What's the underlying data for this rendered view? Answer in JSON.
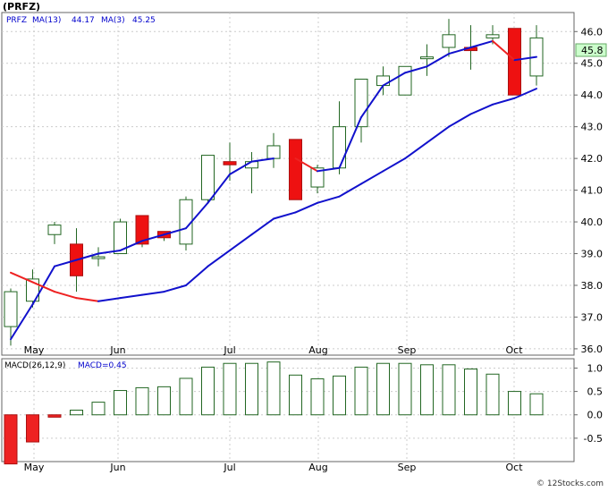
{
  "chart_data": [
    {
      "type": "candlestick",
      "title": "(PRFZ)",
      "legend": {
        "items": [
          {
            "text": "PRFZ",
            "color": "#0000cc"
          },
          {
            "text": "MA(13)",
            "color": "#0000cc"
          },
          {
            "text": "44.17",
            "color": "#0000cc"
          },
          {
            "text": "MA(3)",
            "color": "#0000cc"
          },
          {
            "text": "45.25",
            "color": "#0000cc"
          }
        ]
      },
      "last_price_label": "45.8",
      "ylim": [
        35.8,
        46.6
      ],
      "y_ticks": [
        "46.0",
        "45.0",
        "44.0",
        "43.0",
        "42.0",
        "41.0",
        "40.0",
        "39.0",
        "38.0",
        "37.0",
        "36.0"
      ],
      "x_ticks": [
        "May",
        "Jun",
        "Jul",
        "Aug",
        "Sep",
        "Oct"
      ],
      "candles": [
        {
          "o": 36.7,
          "h": 37.9,
          "l": 36.1,
          "c": 37.8
        },
        {
          "o": 37.5,
          "h": 38.5,
          "l": 37.3,
          "c": 38.2
        },
        {
          "o": 39.6,
          "h": 40.0,
          "l": 39.3,
          "c": 39.9
        },
        {
          "o": 39.3,
          "h": 39.8,
          "l": 37.8,
          "c": 38.3
        },
        {
          "o": 38.9,
          "h": 39.2,
          "l": 38.6,
          "c": 38.9
        },
        {
          "o": 39.0,
          "h": 40.1,
          "l": 39.0,
          "c": 40.0
        },
        {
          "o": 40.2,
          "h": 40.2,
          "l": 39.2,
          "c": 39.3
        },
        {
          "o": 39.7,
          "h": 39.7,
          "l": 39.4,
          "c": 39.5
        },
        {
          "o": 39.3,
          "h": 40.8,
          "l": 39.1,
          "c": 40.7
        },
        {
          "o": 40.7,
          "h": 42.1,
          "l": 40.6,
          "c": 42.1
        },
        {
          "o": 41.9,
          "h": 42.5,
          "l": 41.3,
          "c": 41.8
        },
        {
          "o": 41.7,
          "h": 42.2,
          "l": 40.9,
          "c": 41.9
        },
        {
          "o": 42.0,
          "h": 42.8,
          "l": 41.7,
          "c": 42.4
        },
        {
          "o": 42.6,
          "h": 42.6,
          "l": 40.7,
          "c": 40.7
        },
        {
          "o": 41.1,
          "h": 41.8,
          "l": 40.9,
          "c": 41.7
        },
        {
          "o": 41.7,
          "h": 43.8,
          "l": 41.5,
          "c": 43.0
        },
        {
          "o": 43.0,
          "h": 44.5,
          "l": 42.5,
          "c": 44.5
        },
        {
          "o": 44.3,
          "h": 44.9,
          "l": 44.0,
          "c": 44.6
        },
        {
          "o": 44.0,
          "h": 44.9,
          "l": 44.0,
          "c": 44.9
        },
        {
          "o": 45.2,
          "h": 45.6,
          "l": 44.6,
          "c": 45.2
        },
        {
          "o": 45.5,
          "h": 46.4,
          "l": 45.2,
          "c": 45.9
        },
        {
          "o": 45.5,
          "h": 46.2,
          "l": 44.8,
          "c": 45.4
        },
        {
          "o": 45.8,
          "h": 46.2,
          "l": 45.6,
          "c": 45.9
        },
        {
          "o": 46.1,
          "h": 46.1,
          "l": 44.0,
          "c": 44.0
        },
        {
          "o": 44.6,
          "h": 46.2,
          "l": 44.3,
          "c": 45.8
        }
      ],
      "series": [
        {
          "name": "MA(13)",
          "color": "#1111cc",
          "values": [
            36.3,
            37.4,
            38.6,
            38.8,
            39.0,
            39.1,
            39.4,
            39.6,
            39.8,
            40.6,
            41.5,
            41.9,
            42.0
          ]
        },
        {
          "name": "MA(3)",
          "color": "#1111cc",
          "down_color": "#ee2222",
          "values": [
            38.4,
            38.1,
            37.8,
            37.6,
            37.5,
            37.6,
            37.7,
            37.8,
            38.0,
            38.6,
            39.1,
            39.6,
            40.1,
            40.3,
            40.6,
            40.8,
            41.2,
            41.6,
            42.0,
            42.5,
            43.0,
            43.4,
            43.7,
            43.9,
            44.2
          ]
        },
        {
          "name": "MA(13) overlay",
          "color": "#1111cc",
          "down_color": "#ee2222",
          "values": [
            42.0,
            41.6,
            41.7,
            43.3,
            44.3,
            44.7,
            44.9,
            45.3,
            45.5,
            45.7,
            45.1,
            45.2
          ]
        }
      ]
    },
    {
      "type": "bar",
      "title": "MACD(26,12,9)",
      "legend_value_label": "MACD=0.45",
      "ylim": [
        -1.0,
        1.2
      ],
      "y_ticks": [
        "1.0",
        "0.5",
        "0.0",
        "-0.5"
      ],
      "x_ticks": [
        "May",
        "Jun",
        "Jul",
        "Aug",
        "Sep",
        "Oct"
      ],
      "values": [
        -1.05,
        -0.58,
        -0.05,
        0.1,
        0.27,
        0.52,
        0.58,
        0.6,
        0.78,
        1.02,
        1.1,
        1.1,
        1.13,
        0.85,
        0.77,
        0.83,
        1.02,
        1.1,
        1.1,
        1.07,
        1.07,
        0.98,
        0.87,
        0.5,
        0.45
      ],
      "positive_color": "#ffffff",
      "positive_border": "#226622",
      "negative_color": "#ee2222",
      "negative_border": "#aa1111"
    }
  ],
  "footer": {
    "credit": "© 12Stocks.com"
  }
}
